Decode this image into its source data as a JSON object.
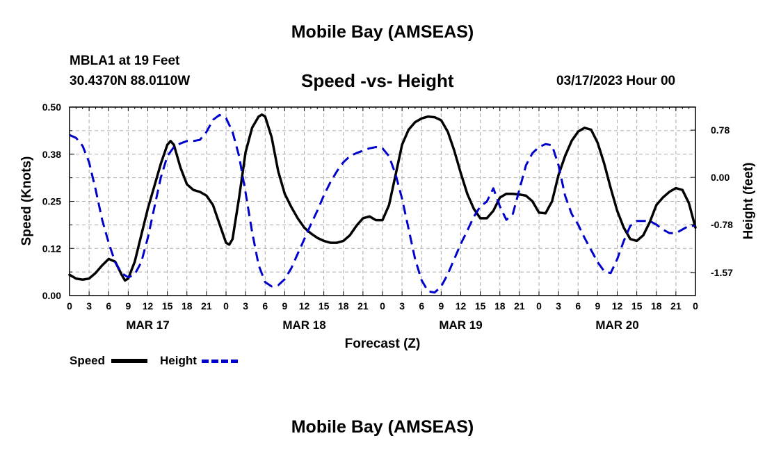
{
  "header": {
    "title": "Mobile Bay (AMSEAS)",
    "station": "MBLA1 at 19 Feet",
    "coords": "30.4370N  88.0110W",
    "subtitle": "Speed -vs- Height",
    "run_time": "03/17/2023 Hour 00"
  },
  "footer": {
    "title": "Mobile Bay (AMSEAS)"
  },
  "legend": {
    "speed_label": "Speed",
    "height_label": "Height"
  },
  "colors": {
    "speed": "#000000",
    "height": "#0000cc",
    "grid": "#aaaaaa"
  },
  "chart_data": {
    "type": "line",
    "title": "Speed -vs- Height",
    "xlabel": "Forecast (Z)",
    "ylabel": "Speed (Knots)",
    "y2label": "Height (feet)",
    "xlim": [
      0,
      96
    ],
    "ylim": [
      0,
      0.5
    ],
    "y2lim": [
      -1.95,
      1.16
    ],
    "grid": true,
    "legend_position": "bottom-left",
    "x_tick_labels": [
      "0",
      "3",
      "6",
      "9",
      "12",
      "15",
      "18",
      "21",
      "0",
      "3",
      "6",
      "9",
      "12",
      "15",
      "18",
      "21",
      "0",
      "3",
      "6",
      "9",
      "12",
      "15",
      "18",
      "21",
      "0",
      "3",
      "6",
      "9",
      "12",
      "15",
      "18",
      "21",
      "0"
    ],
    "y_tick_labels": [
      "0.00",
      "0.12",
      "0.25",
      "0.38",
      "0.50"
    ],
    "y2_tick_labels": [
      "0.78",
      "0.00",
      "-0.78",
      "-1.57"
    ],
    "date_labels": [
      "MAR 17",
      "MAR 18",
      "MAR 19",
      "MAR 20"
    ],
    "series": [
      {
        "name": "Speed",
        "axis": "left",
        "x": [
          0,
          1,
          2,
          3,
          4,
          5,
          6,
          7,
          8,
          8.5,
          9,
          10,
          11,
          12,
          13,
          14,
          15,
          15.5,
          16,
          17,
          18,
          19,
          20,
          21,
          22,
          23,
          24,
          24.5,
          25,
          26,
          27,
          28,
          29,
          29.5,
          30,
          31,
          32,
          33,
          34,
          35,
          36,
          37,
          38,
          39,
          40,
          41,
          42,
          43,
          44,
          45,
          46,
          47,
          48,
          49,
          50,
          51,
          52,
          53,
          54,
          55,
          56,
          57,
          58,
          59,
          60,
          61,
          62,
          63,
          64,
          65,
          66,
          67,
          68,
          69,
          70,
          71,
          72,
          73,
          74,
          75,
          76,
          77,
          78,
          79,
          80,
          81,
          82,
          83,
          84,
          85,
          86,
          87,
          88,
          89,
          90,
          91,
          92,
          93,
          94,
          95,
          96
        ],
        "y": [
          0.055,
          0.045,
          0.042,
          0.045,
          0.06,
          0.08,
          0.097,
          0.09,
          0.055,
          0.04,
          0.045,
          0.09,
          0.16,
          0.23,
          0.29,
          0.35,
          0.4,
          0.41,
          0.4,
          0.34,
          0.295,
          0.28,
          0.275,
          0.265,
          0.24,
          0.19,
          0.14,
          0.135,
          0.15,
          0.26,
          0.38,
          0.445,
          0.475,
          0.48,
          0.475,
          0.42,
          0.33,
          0.27,
          0.235,
          0.205,
          0.18,
          0.165,
          0.153,
          0.145,
          0.14,
          0.14,
          0.145,
          0.16,
          0.185,
          0.205,
          0.21,
          0.2,
          0.2,
          0.24,
          0.32,
          0.4,
          0.44,
          0.46,
          0.47,
          0.475,
          0.473,
          0.465,
          0.435,
          0.385,
          0.325,
          0.27,
          0.23,
          0.205,
          0.205,
          0.225,
          0.26,
          0.27,
          0.27,
          0.268,
          0.265,
          0.25,
          0.22,
          0.218,
          0.25,
          0.32,
          0.37,
          0.41,
          0.435,
          0.445,
          0.44,
          0.405,
          0.35,
          0.285,
          0.225,
          0.18,
          0.15,
          0.145,
          0.16,
          0.195,
          0.24,
          0.26,
          0.275,
          0.285,
          0.28,
          0.245,
          0.18
        ]
      },
      {
        "name": "Height",
        "axis": "right",
        "x": [
          0,
          1,
          2,
          3,
          4,
          5,
          6,
          7,
          8,
          9,
          10,
          11,
          12,
          13,
          14,
          15,
          16,
          17,
          18,
          19,
          20,
          21,
          22,
          23,
          24,
          25,
          26,
          27,
          28,
          29,
          30,
          31,
          32,
          33,
          34,
          35,
          36,
          37,
          38,
          39,
          40,
          41,
          42,
          43,
          44,
          45,
          46,
          47,
          48,
          49,
          50,
          51,
          52,
          53,
          54,
          55,
          56,
          57,
          58,
          59,
          60,
          61,
          62,
          63,
          64,
          65,
          66,
          67,
          68,
          69,
          70,
          71,
          72,
          73,
          74,
          75,
          76,
          77,
          78,
          79,
          80,
          81,
          82,
          83,
          84,
          85,
          86,
          87,
          88,
          89,
          90,
          91,
          92,
          93,
          94,
          95,
          96
        ],
        "y": [
          0.7,
          0.65,
          0.52,
          0.25,
          -0.2,
          -0.7,
          -1.08,
          -1.4,
          -1.58,
          -1.65,
          -1.6,
          -1.4,
          -1.0,
          -0.5,
          0.0,
          0.35,
          0.5,
          0.56,
          0.6,
          0.6,
          0.62,
          0.75,
          0.95,
          1.03,
          0.98,
          0.75,
          0.35,
          -0.25,
          -0.9,
          -1.45,
          -1.73,
          -1.8,
          -1.78,
          -1.68,
          -1.5,
          -1.26,
          -1.02,
          -0.78,
          -0.55,
          -0.3,
          -0.08,
          0.1,
          0.25,
          0.35,
          0.4,
          0.44,
          0.48,
          0.5,
          0.48,
          0.35,
          0.05,
          -0.35,
          -0.85,
          -1.35,
          -1.7,
          -1.88,
          -1.9,
          -1.8,
          -1.6,
          -1.35,
          -1.1,
          -0.88,
          -0.65,
          -0.48,
          -0.4,
          -0.18,
          -0.48,
          -0.7,
          -0.6,
          -0.2,
          0.2,
          0.4,
          0.5,
          0.55,
          0.53,
          0.2,
          -0.3,
          -0.6,
          -0.78,
          -1.0,
          -1.2,
          -1.4,
          -1.55,
          -1.58,
          -1.35,
          -1.05,
          -0.8,
          -0.72,
          -0.72,
          -0.72,
          -0.78,
          -0.86,
          -0.92,
          -0.92,
          -0.86,
          -0.8,
          -0.8
        ]
      }
    ]
  }
}
